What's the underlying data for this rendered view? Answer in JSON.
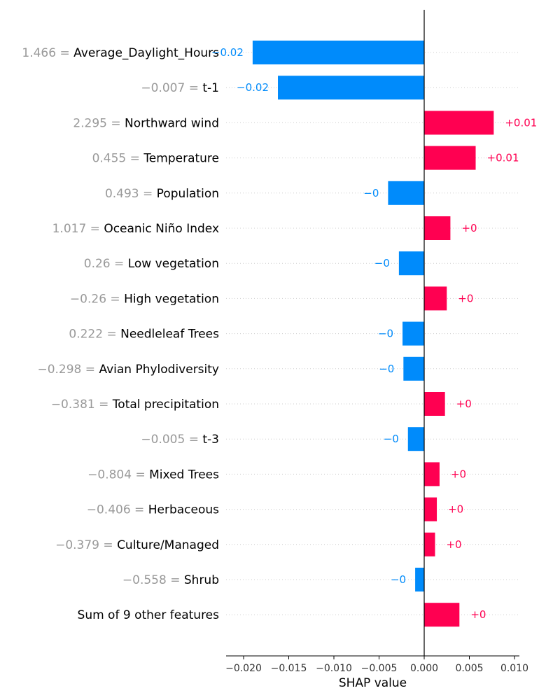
{
  "chart_data": {
    "type": "bar",
    "orientation": "horizontal",
    "xlabel": "SHAP value",
    "xlim": [
      -0.022,
      0.0103
    ],
    "xticks": [
      -0.02,
      -0.015,
      -0.01,
      -0.005,
      0.0,
      0.005,
      0.01
    ],
    "xtick_labels": [
      "−0.020",
      "−0.015",
      "−0.010",
      "−0.005",
      "0.000",
      "0.005",
      "0.010"
    ],
    "grid": "horizontal dotted guide lines per row",
    "colors": {
      "positive": "#ff0051",
      "negative": "#008bfb",
      "value_text": "#999999"
    },
    "rows": [
      {
        "value": "1.466",
        "feature": "Average_Daylight_Hours",
        "shap": -0.019,
        "label": "−0.02"
      },
      {
        "value": "−0.007",
        "feature": "t-1",
        "shap": -0.0162,
        "label": "−0.02"
      },
      {
        "value": "2.295",
        "feature": "Northward wind",
        "shap": 0.0077,
        "label": "+0.01"
      },
      {
        "value": "0.455",
        "feature": "Temperature",
        "shap": 0.0057,
        "label": "+0.01"
      },
      {
        "value": "0.493",
        "feature": "Population",
        "shap": -0.004,
        "label": "−0"
      },
      {
        "value": "1.017",
        "feature": "Oceanic Niño Index",
        "shap": 0.0029,
        "label": "+0"
      },
      {
        "value": "0.26",
        "feature": "Low vegetation",
        "shap": -0.0028,
        "label": "−0"
      },
      {
        "value": "−0.26",
        "feature": "High vegetation",
        "shap": 0.0025,
        "label": "+0"
      },
      {
        "value": "0.222",
        "feature": "Needleleaf Trees",
        "shap": -0.0024,
        "label": "−0"
      },
      {
        "value": "−0.298",
        "feature": "Avian Phylodiversity",
        "shap": -0.0023,
        "label": "−0"
      },
      {
        "value": "−0.381",
        "feature": "Total precipitation",
        "shap": 0.0023,
        "label": "+0"
      },
      {
        "value": "−0.005",
        "feature": "t-3",
        "shap": -0.0018,
        "label": "−0"
      },
      {
        "value": "−0.804",
        "feature": "Mixed Trees",
        "shap": 0.0017,
        "label": "+0"
      },
      {
        "value": "−0.406",
        "feature": "Herbaceous",
        "shap": 0.0014,
        "label": "+0"
      },
      {
        "value": "−0.379",
        "feature": "Culture/Managed",
        "shap": 0.0012,
        "label": "+0"
      },
      {
        "value": "−0.558",
        "feature": "Shrub",
        "shap": -0.001,
        "label": "−0"
      },
      {
        "value": "",
        "feature": "Sum of 9 other features",
        "shap": 0.0039,
        "label": "+0"
      }
    ]
  }
}
